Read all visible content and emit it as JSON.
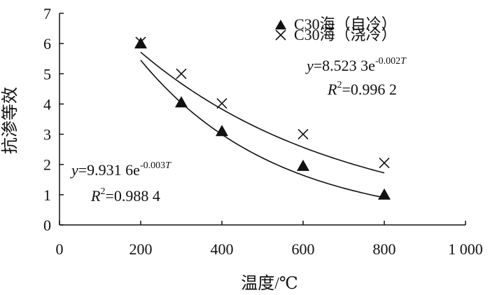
{
  "chart_data": {
    "type": "scatter",
    "xlabel": "温度/℃",
    "ylabel": "抗渗等效",
    "xlim": [
      0,
      1000
    ],
    "ylim": [
      0,
      7
    ],
    "xticks": [
      0,
      200,
      400,
      600,
      800,
      1000
    ],
    "yticks": [
      0,
      1,
      2,
      3,
      4,
      5,
      6,
      7
    ],
    "xtick_labels": [
      "0",
      "200",
      "400",
      "600",
      "800",
      "1 000"
    ],
    "ytick_labels": [
      "0",
      "1",
      "2",
      "3",
      "4",
      "5",
      "6",
      "7"
    ],
    "grid": false,
    "legend_position": "top-right",
    "series": [
      {
        "name": "C30海（自冷）",
        "marker": "triangle",
        "x": [
          200,
          300,
          400,
          600,
          800
        ],
        "y": [
          6.0,
          4.05,
          3.1,
          1.95,
          1.0
        ],
        "fit": {
          "a": 9.9316,
          "b": -0.003,
          "label_prefix": "y",
          "label_eq": "=9.931 6e",
          "label_exp": "-0.003",
          "label_exp_var": "T",
          "label_r_letter": "R",
          "label_r_sup": "2",
          "label_r_value": "=0.988 4"
        }
      },
      {
        "name": "C30海（浇冷）",
        "marker": "cross",
        "x": [
          200,
          300,
          400,
          600,
          800
        ],
        "y": [
          6.05,
          5.0,
          4.02,
          3.0,
          2.05
        ],
        "fit": {
          "a": 8.5233,
          "b": -0.002,
          "label_prefix": "y",
          "label_eq": "=8.523 3e",
          "label_exp": "-0.002",
          "label_exp_var": "T",
          "label_r_letter": "R",
          "label_r_sup": "2",
          "label_r_value": "=0.996 2"
        }
      }
    ]
  },
  "colors": {
    "ink": "#111111",
    "background": "#ffffff"
  }
}
